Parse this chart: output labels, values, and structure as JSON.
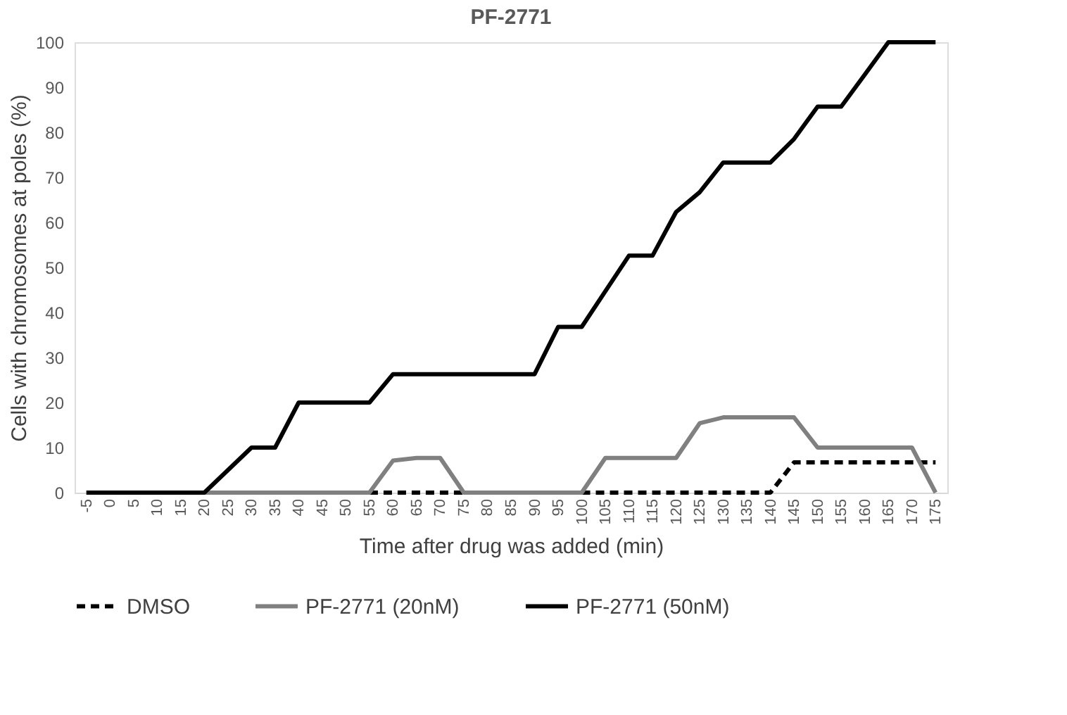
{
  "chart_data": {
    "type": "line",
    "title": "PF-2771",
    "xlabel": "Time after drug was added (min)",
    "ylabel": "Cells with chromosomes at poles (%)",
    "categories": [
      "-5",
      "0",
      "5",
      "10",
      "15",
      "20",
      "25",
      "30",
      "35",
      "40",
      "45",
      "50",
      "55",
      "60",
      "65",
      "70",
      "75",
      "80",
      "85",
      "90",
      "95",
      "100",
      "105",
      "110",
      "115",
      "120",
      "125",
      "130",
      "135",
      "140",
      "145",
      "150",
      "155",
      "160",
      "165",
      "170",
      "175"
    ],
    "series": [
      {
        "name": "DMSO",
        "color": "#000000",
        "line_style": "dashed",
        "values": [
          null,
          null,
          null,
          null,
          null,
          null,
          null,
          null,
          null,
          null,
          null,
          null,
          0,
          0,
          0,
          0,
          0,
          null,
          null,
          null,
          null,
          0,
          0,
          0,
          0,
          0,
          0,
          0,
          0,
          0,
          6.7,
          6.7,
          6.7,
          6.7,
          6.7,
          6.7,
          6.7
        ]
      },
      {
        "name": "PF-2771 (20nM)",
        "color": "#808080",
        "line_style": "solid",
        "values": [
          0,
          0,
          0,
          0,
          0,
          0,
          0,
          0,
          0,
          0,
          0,
          0,
          0,
          7.1,
          7.7,
          7.7,
          0,
          0,
          0,
          0,
          0,
          0,
          7.7,
          7.7,
          7.7,
          7.7,
          15.4,
          16.7,
          16.7,
          16.7,
          16.7,
          10,
          10,
          10,
          10,
          10,
          0
        ]
      },
      {
        "name": "PF-2771 (50nM)",
        "color": "#000000",
        "line_style": "solid",
        "values": [
          0,
          0,
          0,
          0,
          0,
          0,
          5,
          10,
          10,
          20,
          20,
          20,
          20,
          26.3,
          26.3,
          26.3,
          26.3,
          26.3,
          26.3,
          26.3,
          36.8,
          36.8,
          44.7,
          52.6,
          52.6,
          62.3,
          66.7,
          73.3,
          73.3,
          73.3,
          78.5,
          85.7,
          85.7,
          92.8,
          100,
          100,
          100
        ]
      }
    ],
    "ylim": [
      0,
      100
    ],
    "yticks": [
      0,
      10,
      20,
      30,
      40,
      50,
      60,
      70,
      80,
      90,
      100
    ],
    "grid": false,
    "legend": "bottom",
    "marker": "none"
  }
}
